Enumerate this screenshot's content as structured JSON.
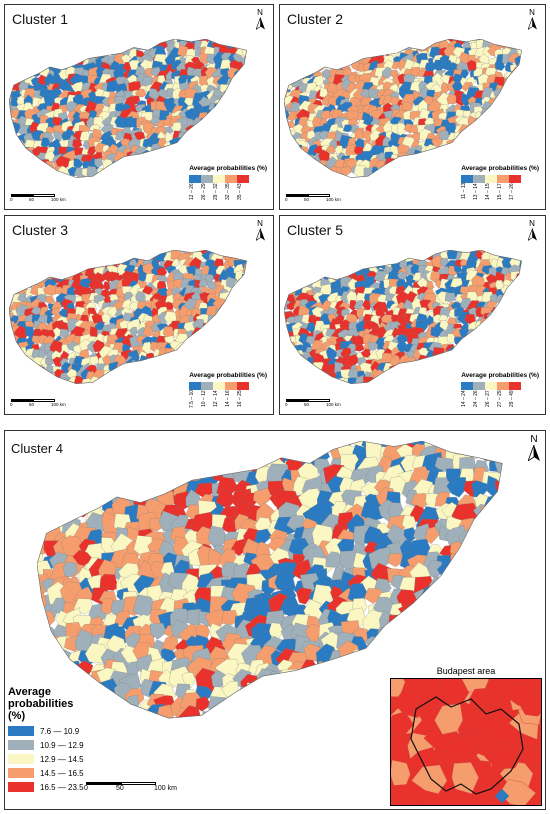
{
  "panels": [
    {
      "id": "c1",
      "title": "Cluster 1",
      "legend_title": "Average probabilities (%)",
      "classes": [
        "12 – 26",
        "26 – 29",
        "29 – 32",
        "32 – 35",
        "35 – 43"
      ]
    },
    {
      "id": "c2",
      "title": "Cluster 2",
      "legend_title": "Average probabilities (%)",
      "classes": [
        "11 – 13",
        "13 – 14",
        "14 – 15",
        "15 – 17",
        "17 – 26"
      ]
    },
    {
      "id": "c3",
      "title": "Cluster 3",
      "legend_title": "Average probabilities (%)",
      "classes": [
        "7.5 – 10",
        "10 – 12",
        "12 – 14",
        "14 – 16",
        "16 – 25"
      ]
    },
    {
      "id": "c5",
      "title": "Cluster 5",
      "legend_title": "Average probabilities (%)",
      "classes": [
        "14 – 24",
        "24 – 26",
        "26 – 27",
        "27 – 29",
        "29 – 49"
      ]
    }
  ],
  "colors": [
    "#2b7bc2",
    "#9fb0bb",
    "#fbf7c2",
    "#f59d6d",
    "#e8322b"
  ],
  "north_label": "N",
  "scale_small": [
    "0",
    "50",
    "100 km"
  ],
  "cluster4": {
    "title": "Cluster 4",
    "legend_title": "Average probabilities (%)",
    "classes": [
      "7.6 — 10.9",
      "10.9 — 12.9",
      "12.9 — 14.5",
      "14.5 — 16.5",
      "16.5 — 23.5"
    ],
    "scale": [
      "0",
      "50",
      "100 km"
    ],
    "inset_title": "Budapest area"
  }
}
